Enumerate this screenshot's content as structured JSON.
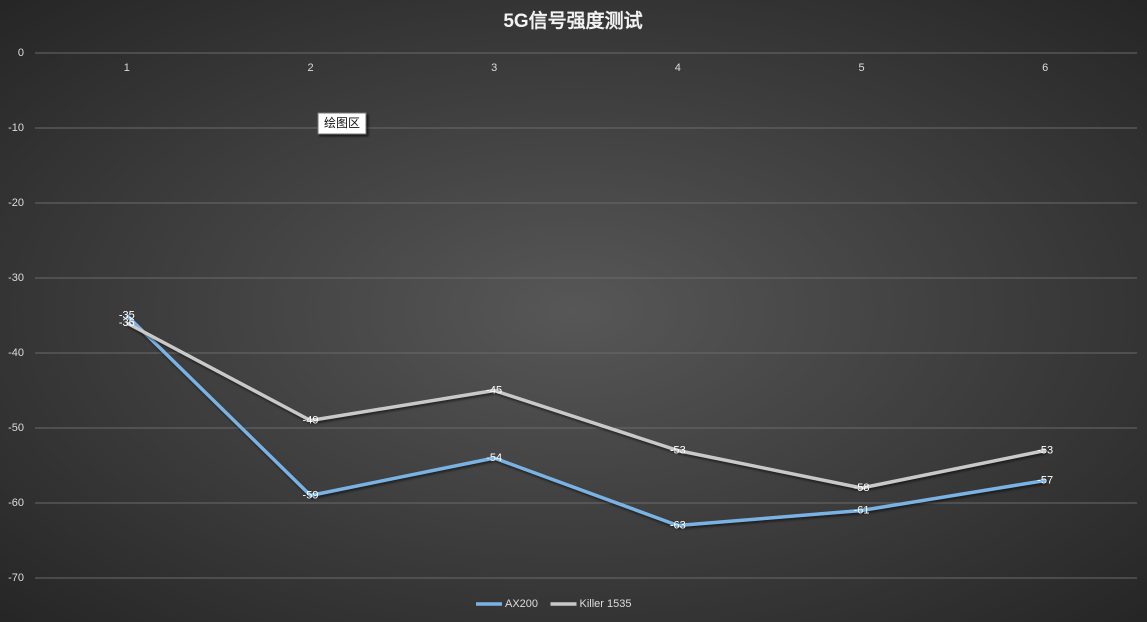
{
  "chart_data": {
    "type": "line",
    "title": "5G信号强度测试",
    "tooltip": "绘图区",
    "categories": [
      "1",
      "2",
      "3",
      "4",
      "5",
      "6"
    ],
    "series": [
      {
        "name": "AX200",
        "color": "#7ab3e3",
        "values": [
          -35,
          -59,
          -54,
          -63,
          -61,
          -57
        ]
      },
      {
        "name": "Killer 1535",
        "color": "#c9c9c9",
        "values": [
          -36,
          -49,
          -45,
          -53,
          -58,
          -53
        ]
      }
    ],
    "ylim": [
      -70,
      0
    ],
    "yticks": [
      0,
      -10,
      -20,
      -30,
      -40,
      -50,
      -60,
      -70
    ],
    "grid": true,
    "legend": "bottom",
    "data_labels": true
  }
}
